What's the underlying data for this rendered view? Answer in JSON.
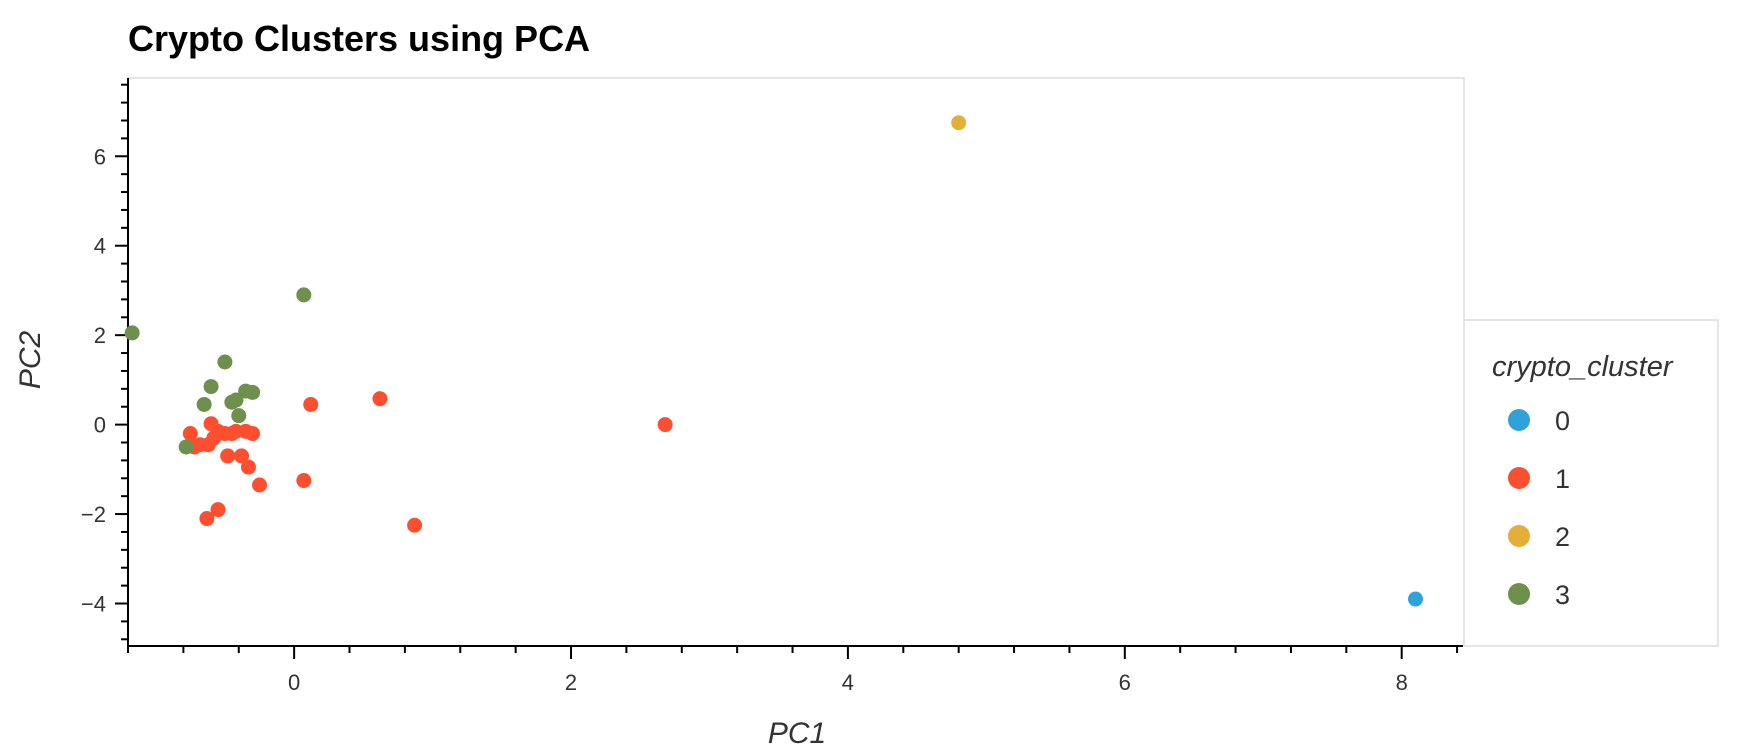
{
  "chart_data": {
    "type": "scatter",
    "title": "Crypto Clusters using PCA",
    "xlabel": "PC1",
    "ylabel": "PC2",
    "xlim": [
      -1.2,
      8.45
    ],
    "ylim": [
      -4.95,
      7.75
    ],
    "xticks": [
      0,
      2,
      4,
      6,
      8
    ],
    "yticks": [
      -4,
      -2,
      0,
      2,
      4,
      6
    ],
    "xtick_labels": [
      "0",
      "2",
      "4",
      "6",
      "8"
    ],
    "ytick_labels": [
      "−4",
      "−2",
      "0",
      "2",
      "4",
      "6"
    ],
    "grid": false,
    "legend": {
      "title": "crypto_cluster",
      "placement": "right"
    },
    "series": [
      {
        "name": "0",
        "color": "#30a2da",
        "points": [
          [
            8.1,
            -3.9
          ]
        ]
      },
      {
        "name": "1",
        "color": "#fc4f30",
        "points": [
          [
            -0.75,
            -0.2
          ],
          [
            -0.72,
            -0.5
          ],
          [
            -0.68,
            -0.45
          ],
          [
            -0.62,
            -0.45
          ],
          [
            -0.6,
            0.02
          ],
          [
            -0.58,
            -0.3
          ],
          [
            -0.55,
            -0.15
          ],
          [
            -0.5,
            -0.2
          ],
          [
            -0.48,
            -0.7
          ],
          [
            -0.45,
            -0.2
          ],
          [
            -0.42,
            -0.15
          ],
          [
            -0.38,
            -0.7
          ],
          [
            -0.35,
            -0.15
          ],
          [
            -0.33,
            -0.95
          ],
          [
            -0.3,
            -0.2
          ],
          [
            -0.25,
            -1.35
          ],
          [
            -0.63,
            -2.1
          ],
          [
            -0.55,
            -1.9
          ],
          [
            0.07,
            -1.25
          ],
          [
            0.12,
            0.45
          ],
          [
            0.62,
            0.58
          ],
          [
            0.87,
            -2.25
          ],
          [
            2.68,
            0.0
          ]
        ]
      },
      {
        "name": "2",
        "color": "#e5ae38",
        "points": [
          [
            4.8,
            6.75
          ]
        ]
      },
      {
        "name": "3",
        "color": "#6d904f",
        "points": [
          [
            -1.17,
            2.05
          ],
          [
            0.07,
            2.9
          ],
          [
            -0.5,
            1.4
          ],
          [
            -0.6,
            0.85
          ],
          [
            -0.65,
            0.45
          ],
          [
            -0.45,
            0.5
          ],
          [
            -0.42,
            0.55
          ],
          [
            -0.35,
            0.75
          ],
          [
            -0.3,
            0.72
          ],
          [
            -0.4,
            0.2
          ],
          [
            -0.78,
            -0.5
          ]
        ]
      }
    ]
  }
}
